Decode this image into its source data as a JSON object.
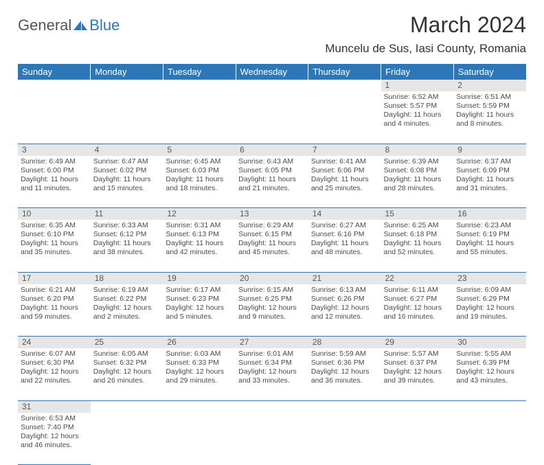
{
  "logo": {
    "part1": "General",
    "part2": "Blue"
  },
  "title": "March 2024",
  "location": "Muncelu de Sus, Iasi County, Romania",
  "colors": {
    "header_bg": "#2d77b8",
    "header_fg": "#ffffff",
    "daynum_bg": "#e6e6e6",
    "border": "#2d77b8"
  },
  "day_names": [
    "Sunday",
    "Monday",
    "Tuesday",
    "Wednesday",
    "Thursday",
    "Friday",
    "Saturday"
  ],
  "weeks": [
    {
      "nums": [
        "",
        "",
        "",
        "",
        "",
        "1",
        "2"
      ],
      "cells": [
        null,
        null,
        null,
        null,
        null,
        {
          "sunrise": "Sunrise: 6:52 AM",
          "sunset": "Sunset: 5:57 PM",
          "day1": "Daylight: 11 hours",
          "day2": "and 4 minutes."
        },
        {
          "sunrise": "Sunrise: 6:51 AM",
          "sunset": "Sunset: 5:59 PM",
          "day1": "Daylight: 11 hours",
          "day2": "and 8 minutes."
        }
      ]
    },
    {
      "nums": [
        "3",
        "4",
        "5",
        "6",
        "7",
        "8",
        "9"
      ],
      "cells": [
        {
          "sunrise": "Sunrise: 6:49 AM",
          "sunset": "Sunset: 6:00 PM",
          "day1": "Daylight: 11 hours",
          "day2": "and 11 minutes."
        },
        {
          "sunrise": "Sunrise: 6:47 AM",
          "sunset": "Sunset: 6:02 PM",
          "day1": "Daylight: 11 hours",
          "day2": "and 15 minutes."
        },
        {
          "sunrise": "Sunrise: 6:45 AM",
          "sunset": "Sunset: 6:03 PM",
          "day1": "Daylight: 11 hours",
          "day2": "and 18 minutes."
        },
        {
          "sunrise": "Sunrise: 6:43 AM",
          "sunset": "Sunset: 6:05 PM",
          "day1": "Daylight: 11 hours",
          "day2": "and 21 minutes."
        },
        {
          "sunrise": "Sunrise: 6:41 AM",
          "sunset": "Sunset: 6:06 PM",
          "day1": "Daylight: 11 hours",
          "day2": "and 25 minutes."
        },
        {
          "sunrise": "Sunrise: 6:39 AM",
          "sunset": "Sunset: 6:08 PM",
          "day1": "Daylight: 11 hours",
          "day2": "and 28 minutes."
        },
        {
          "sunrise": "Sunrise: 6:37 AM",
          "sunset": "Sunset: 6:09 PM",
          "day1": "Daylight: 11 hours",
          "day2": "and 31 minutes."
        }
      ]
    },
    {
      "nums": [
        "10",
        "11",
        "12",
        "13",
        "14",
        "15",
        "16"
      ],
      "cells": [
        {
          "sunrise": "Sunrise: 6:35 AM",
          "sunset": "Sunset: 6:10 PM",
          "day1": "Daylight: 11 hours",
          "day2": "and 35 minutes."
        },
        {
          "sunrise": "Sunrise: 6:33 AM",
          "sunset": "Sunset: 6:12 PM",
          "day1": "Daylight: 11 hours",
          "day2": "and 38 minutes."
        },
        {
          "sunrise": "Sunrise: 6:31 AM",
          "sunset": "Sunset: 6:13 PM",
          "day1": "Daylight: 11 hours",
          "day2": "and 42 minutes."
        },
        {
          "sunrise": "Sunrise: 6:29 AM",
          "sunset": "Sunset: 6:15 PM",
          "day1": "Daylight: 11 hours",
          "day2": "and 45 minutes."
        },
        {
          "sunrise": "Sunrise: 6:27 AM",
          "sunset": "Sunset: 6:16 PM",
          "day1": "Daylight: 11 hours",
          "day2": "and 48 minutes."
        },
        {
          "sunrise": "Sunrise: 6:25 AM",
          "sunset": "Sunset: 6:18 PM",
          "day1": "Daylight: 11 hours",
          "day2": "and 52 minutes."
        },
        {
          "sunrise": "Sunrise: 6:23 AM",
          "sunset": "Sunset: 6:19 PM",
          "day1": "Daylight: 11 hours",
          "day2": "and 55 minutes."
        }
      ]
    },
    {
      "nums": [
        "17",
        "18",
        "19",
        "20",
        "21",
        "22",
        "23"
      ],
      "cells": [
        {
          "sunrise": "Sunrise: 6:21 AM",
          "sunset": "Sunset: 6:20 PM",
          "day1": "Daylight: 11 hours",
          "day2": "and 59 minutes."
        },
        {
          "sunrise": "Sunrise: 6:19 AM",
          "sunset": "Sunset: 6:22 PM",
          "day1": "Daylight: 12 hours",
          "day2": "and 2 minutes."
        },
        {
          "sunrise": "Sunrise: 6:17 AM",
          "sunset": "Sunset: 6:23 PM",
          "day1": "Daylight: 12 hours",
          "day2": "and 5 minutes."
        },
        {
          "sunrise": "Sunrise: 6:15 AM",
          "sunset": "Sunset: 6:25 PM",
          "day1": "Daylight: 12 hours",
          "day2": "and 9 minutes."
        },
        {
          "sunrise": "Sunrise: 6:13 AM",
          "sunset": "Sunset: 6:26 PM",
          "day1": "Daylight: 12 hours",
          "day2": "and 12 minutes."
        },
        {
          "sunrise": "Sunrise: 6:11 AM",
          "sunset": "Sunset: 6:27 PM",
          "day1": "Daylight: 12 hours",
          "day2": "and 16 minutes."
        },
        {
          "sunrise": "Sunrise: 6:09 AM",
          "sunset": "Sunset: 6:29 PM",
          "day1": "Daylight: 12 hours",
          "day2": "and 19 minutes."
        }
      ]
    },
    {
      "nums": [
        "24",
        "25",
        "26",
        "27",
        "28",
        "29",
        "30"
      ],
      "cells": [
        {
          "sunrise": "Sunrise: 6:07 AM",
          "sunset": "Sunset: 6:30 PM",
          "day1": "Daylight: 12 hours",
          "day2": "and 22 minutes."
        },
        {
          "sunrise": "Sunrise: 6:05 AM",
          "sunset": "Sunset: 6:32 PM",
          "day1": "Daylight: 12 hours",
          "day2": "and 26 minutes."
        },
        {
          "sunrise": "Sunrise: 6:03 AM",
          "sunset": "Sunset: 6:33 PM",
          "day1": "Daylight: 12 hours",
          "day2": "and 29 minutes."
        },
        {
          "sunrise": "Sunrise: 6:01 AM",
          "sunset": "Sunset: 6:34 PM",
          "day1": "Daylight: 12 hours",
          "day2": "and 33 minutes."
        },
        {
          "sunrise": "Sunrise: 5:59 AM",
          "sunset": "Sunset: 6:36 PM",
          "day1": "Daylight: 12 hours",
          "day2": "and 36 minutes."
        },
        {
          "sunrise": "Sunrise: 5:57 AM",
          "sunset": "Sunset: 6:37 PM",
          "day1": "Daylight: 12 hours",
          "day2": "and 39 minutes."
        },
        {
          "sunrise": "Sunrise: 5:55 AM",
          "sunset": "Sunset: 6:39 PM",
          "day1": "Daylight: 12 hours",
          "day2": "and 43 minutes."
        }
      ]
    },
    {
      "nums": [
        "31",
        "",
        "",
        "",
        "",
        "",
        ""
      ],
      "cells": [
        {
          "sunrise": "Sunrise: 6:53 AM",
          "sunset": "Sunset: 7:40 PM",
          "day1": "Daylight: 12 hours",
          "day2": "and 46 minutes."
        },
        null,
        null,
        null,
        null,
        null,
        null
      ]
    }
  ]
}
